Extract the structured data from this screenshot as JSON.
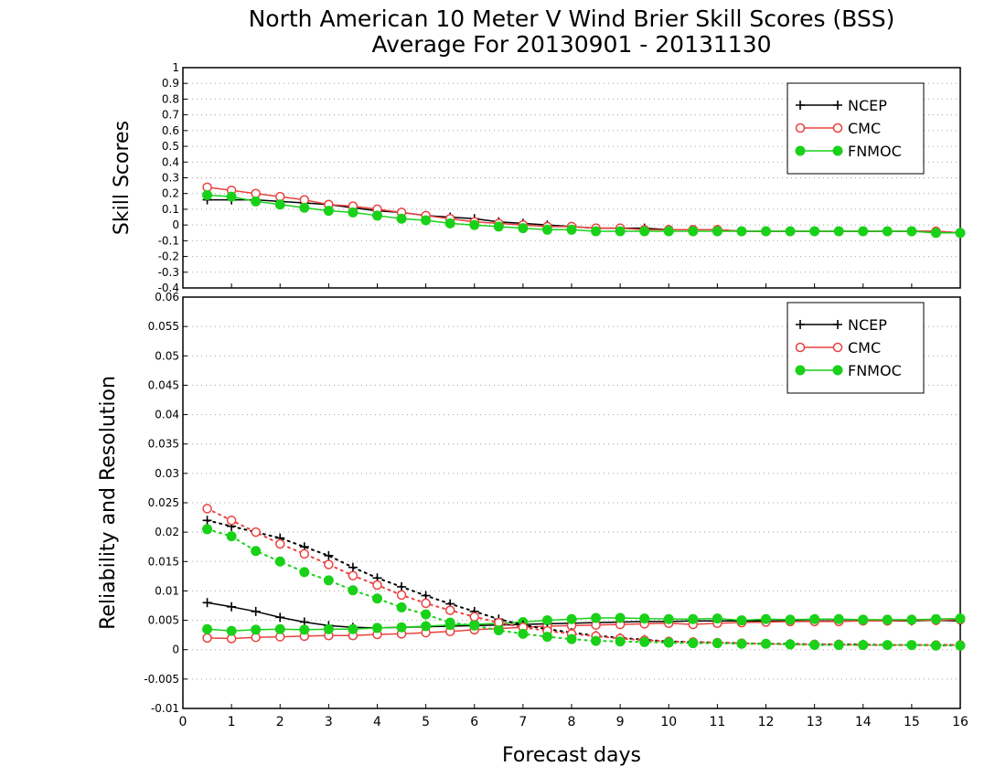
{
  "title": "North American 10 Meter V Wind Brier Skill Scores (BSS)",
  "subtitle": "Average For 20130901 - 20131130",
  "xlabel": "Forecast days",
  "colors": {
    "NCEP": "#000000",
    "CMC": "#e8423f",
    "FNMOC": "#19d119",
    "grid": "#a0a0a0"
  },
  "chart_data": [
    {
      "type": "line",
      "ylabel": "Skill Scores",
      "xlim": [
        0,
        16
      ],
      "ylim": [
        -0.4,
        1
      ],
      "xticks": [
        "0",
        "1",
        "2",
        "3",
        "4",
        "5",
        "6",
        "7",
        "8",
        "9",
        "10",
        "11",
        "12",
        "13",
        "14",
        "15",
        "16"
      ],
      "yticks": [
        "-0.4",
        "-0.3",
        "-0.2",
        "-0.1",
        "0",
        "0.1",
        "0.2",
        "0.3",
        "0.4",
        "0.5",
        "0.6",
        "0.7",
        "0.8",
        "0.9",
        "1"
      ],
      "grid": true,
      "legend_position": "top-right",
      "x": [
        0.5,
        1,
        1.5,
        2,
        2.5,
        3,
        3.5,
        4,
        4.5,
        5,
        5.5,
        6,
        6.5,
        7,
        7.5,
        8,
        8.5,
        9,
        9.5,
        10,
        10.5,
        11,
        11.5,
        12,
        12.5,
        13,
        13.5,
        14,
        14.5,
        15,
        15.5,
        16
      ],
      "series": [
        {
          "name": "NCEP",
          "marker": "plus",
          "values": [
            0.16,
            0.16,
            0.16,
            0.15,
            0.14,
            0.13,
            0.11,
            0.09,
            0.08,
            0.06,
            0.05,
            0.04,
            0.02,
            0.01,
            0.0,
            -0.01,
            -0.02,
            -0.02,
            -0.02,
            -0.03,
            -0.03,
            -0.03,
            -0.04,
            -0.04,
            -0.04,
            -0.04,
            -0.04,
            -0.04,
            -0.04,
            -0.04,
            -0.04,
            -0.05
          ]
        },
        {
          "name": "CMC",
          "marker": "open-circle",
          "values": [
            0.24,
            0.22,
            0.2,
            0.18,
            0.16,
            0.13,
            0.12,
            0.1,
            0.08,
            0.06,
            0.04,
            0.02,
            0.01,
            0.0,
            -0.01,
            -0.01,
            -0.02,
            -0.02,
            -0.03,
            -0.03,
            -0.03,
            -0.03,
            -0.04,
            -0.04,
            -0.04,
            -0.04,
            -0.04,
            -0.04,
            -0.04,
            -0.04,
            -0.04,
            -0.05
          ]
        },
        {
          "name": "FNMOC",
          "marker": "filled-circle",
          "values": [
            0.19,
            0.18,
            0.15,
            0.13,
            0.11,
            0.09,
            0.08,
            0.06,
            0.04,
            0.03,
            0.01,
            0.0,
            -0.01,
            -0.02,
            -0.03,
            -0.03,
            -0.04,
            -0.04,
            -0.04,
            -0.04,
            -0.04,
            -0.04,
            -0.04,
            -0.04,
            -0.04,
            -0.04,
            -0.04,
            -0.04,
            -0.04,
            -0.04,
            -0.05,
            -0.05
          ]
        }
      ]
    },
    {
      "type": "line",
      "ylabel": "Reliability and Resolution",
      "xlim": [
        0,
        16
      ],
      "ylim": [
        -0.01,
        0.06
      ],
      "xticks": [
        "0",
        "1",
        "2",
        "3",
        "4",
        "5",
        "6",
        "7",
        "8",
        "9",
        "10",
        "11",
        "12",
        "13",
        "14",
        "15",
        "16"
      ],
      "yticks": [
        "-0.01",
        "-0.005",
        "0",
        "0.005",
        "0.01",
        "0.015",
        "0.02",
        "0.025",
        "0.03",
        "0.035",
        "0.04",
        "0.045",
        "0.05",
        "0.055",
        "0.06"
      ],
      "grid": true,
      "legend_position": "top-right",
      "x": [
        0.5,
        1,
        1.5,
        2,
        2.5,
        3,
        3.5,
        4,
        4.5,
        5,
        5.5,
        6,
        6.5,
        7,
        7.5,
        8,
        8.5,
        9,
        9.5,
        10,
        10.5,
        11,
        11.5,
        12,
        12.5,
        13,
        13.5,
        14,
        14.5,
        15,
        15.5,
        16
      ],
      "series": [
        {
          "name": "NCEP",
          "marker": "plus",
          "line": "solid",
          "metric": "resolution",
          "values": [
            0.008,
            0.0073,
            0.0065,
            0.0055,
            0.0047,
            0.0041,
            0.0038,
            0.0037,
            0.0038,
            0.0039,
            0.004,
            0.0041,
            0.0042,
            0.0043,
            0.0044,
            0.0045,
            0.0046,
            0.0047,
            0.0048,
            0.0048,
            0.0049,
            0.0049,
            0.0049,
            0.0049,
            0.0049,
            0.0049,
            0.0049,
            0.0049,
            0.0049,
            0.0049,
            0.005,
            0.0049
          ]
        },
        {
          "name": "CMC",
          "marker": "open-circle",
          "line": "solid",
          "metric": "resolution",
          "values": [
            0.002,
            0.0019,
            0.0021,
            0.0022,
            0.0023,
            0.0024,
            0.0024,
            0.0026,
            0.0027,
            0.0029,
            0.0031,
            0.0034,
            0.0036,
            0.0038,
            0.004,
            0.0041,
            0.0042,
            0.0043,
            0.0044,
            0.0045,
            0.0043,
            0.0045,
            0.0046,
            0.0047,
            0.0048,
            0.0048,
            0.0048,
            0.0049,
            0.0049,
            0.005,
            0.005,
            0.0051
          ]
        },
        {
          "name": "FNMOC",
          "marker": "filled-circle",
          "line": "solid",
          "metric": "resolution",
          "values": [
            0.0035,
            0.0032,
            0.0034,
            0.0035,
            0.0034,
            0.0035,
            0.0035,
            0.0037,
            0.0038,
            0.004,
            0.0042,
            0.0043,
            0.0045,
            0.0047,
            0.005,
            0.0052,
            0.0054,
            0.0054,
            0.0053,
            0.0052,
            0.0052,
            0.0053,
            0.005,
            0.0052,
            0.0051,
            0.0052,
            0.0052,
            0.0051,
            0.0051,
            0.0051,
            0.0052,
            0.0053
          ]
        },
        {
          "name": "NCEP",
          "marker": "plus",
          "line": "dotted",
          "metric": "reliability",
          "values": [
            0.022,
            0.021,
            0.02,
            0.019,
            0.0175,
            0.016,
            0.014,
            0.0122,
            0.0107,
            0.0092,
            0.0078,
            0.0065,
            0.0052,
            0.0042,
            0.0035,
            0.0029,
            0.0024,
            0.002,
            0.0017,
            0.0014,
            0.0013,
            0.0012,
            0.0011,
            0.001,
            0.001,
            0.0009,
            0.0009,
            0.0009,
            0.0008,
            0.0008,
            0.0008,
            0.0008
          ]
        },
        {
          "name": "CMC",
          "marker": "open-circle",
          "line": "dotted",
          "metric": "reliability",
          "values": [
            0.024,
            0.022,
            0.02,
            0.018,
            0.0163,
            0.0145,
            0.0126,
            0.011,
            0.0093,
            0.0079,
            0.0067,
            0.0056,
            0.0046,
            0.0038,
            0.0032,
            0.0027,
            0.0023,
            0.0019,
            0.0016,
            0.0014,
            0.0013,
            0.0012,
            0.0011,
            0.001,
            0.0009,
            0.0009,
            0.0009,
            0.0008,
            0.0008,
            0.0008,
            0.0008,
            0.0008
          ]
        },
        {
          "name": "FNMOC",
          "marker": "filled-circle",
          "line": "dotted",
          "metric": "reliability",
          "values": [
            0.0205,
            0.0193,
            0.0168,
            0.015,
            0.0132,
            0.0118,
            0.0101,
            0.0087,
            0.0072,
            0.006,
            0.0046,
            0.0041,
            0.0033,
            0.0027,
            0.0022,
            0.0018,
            0.0015,
            0.0014,
            0.0013,
            0.0012,
            0.0011,
            0.0011,
            0.001,
            0.001,
            0.0009,
            0.0008,
            0.0008,
            0.0008,
            0.0008,
            0.0008,
            0.0007,
            0.0007
          ]
        }
      ]
    }
  ]
}
